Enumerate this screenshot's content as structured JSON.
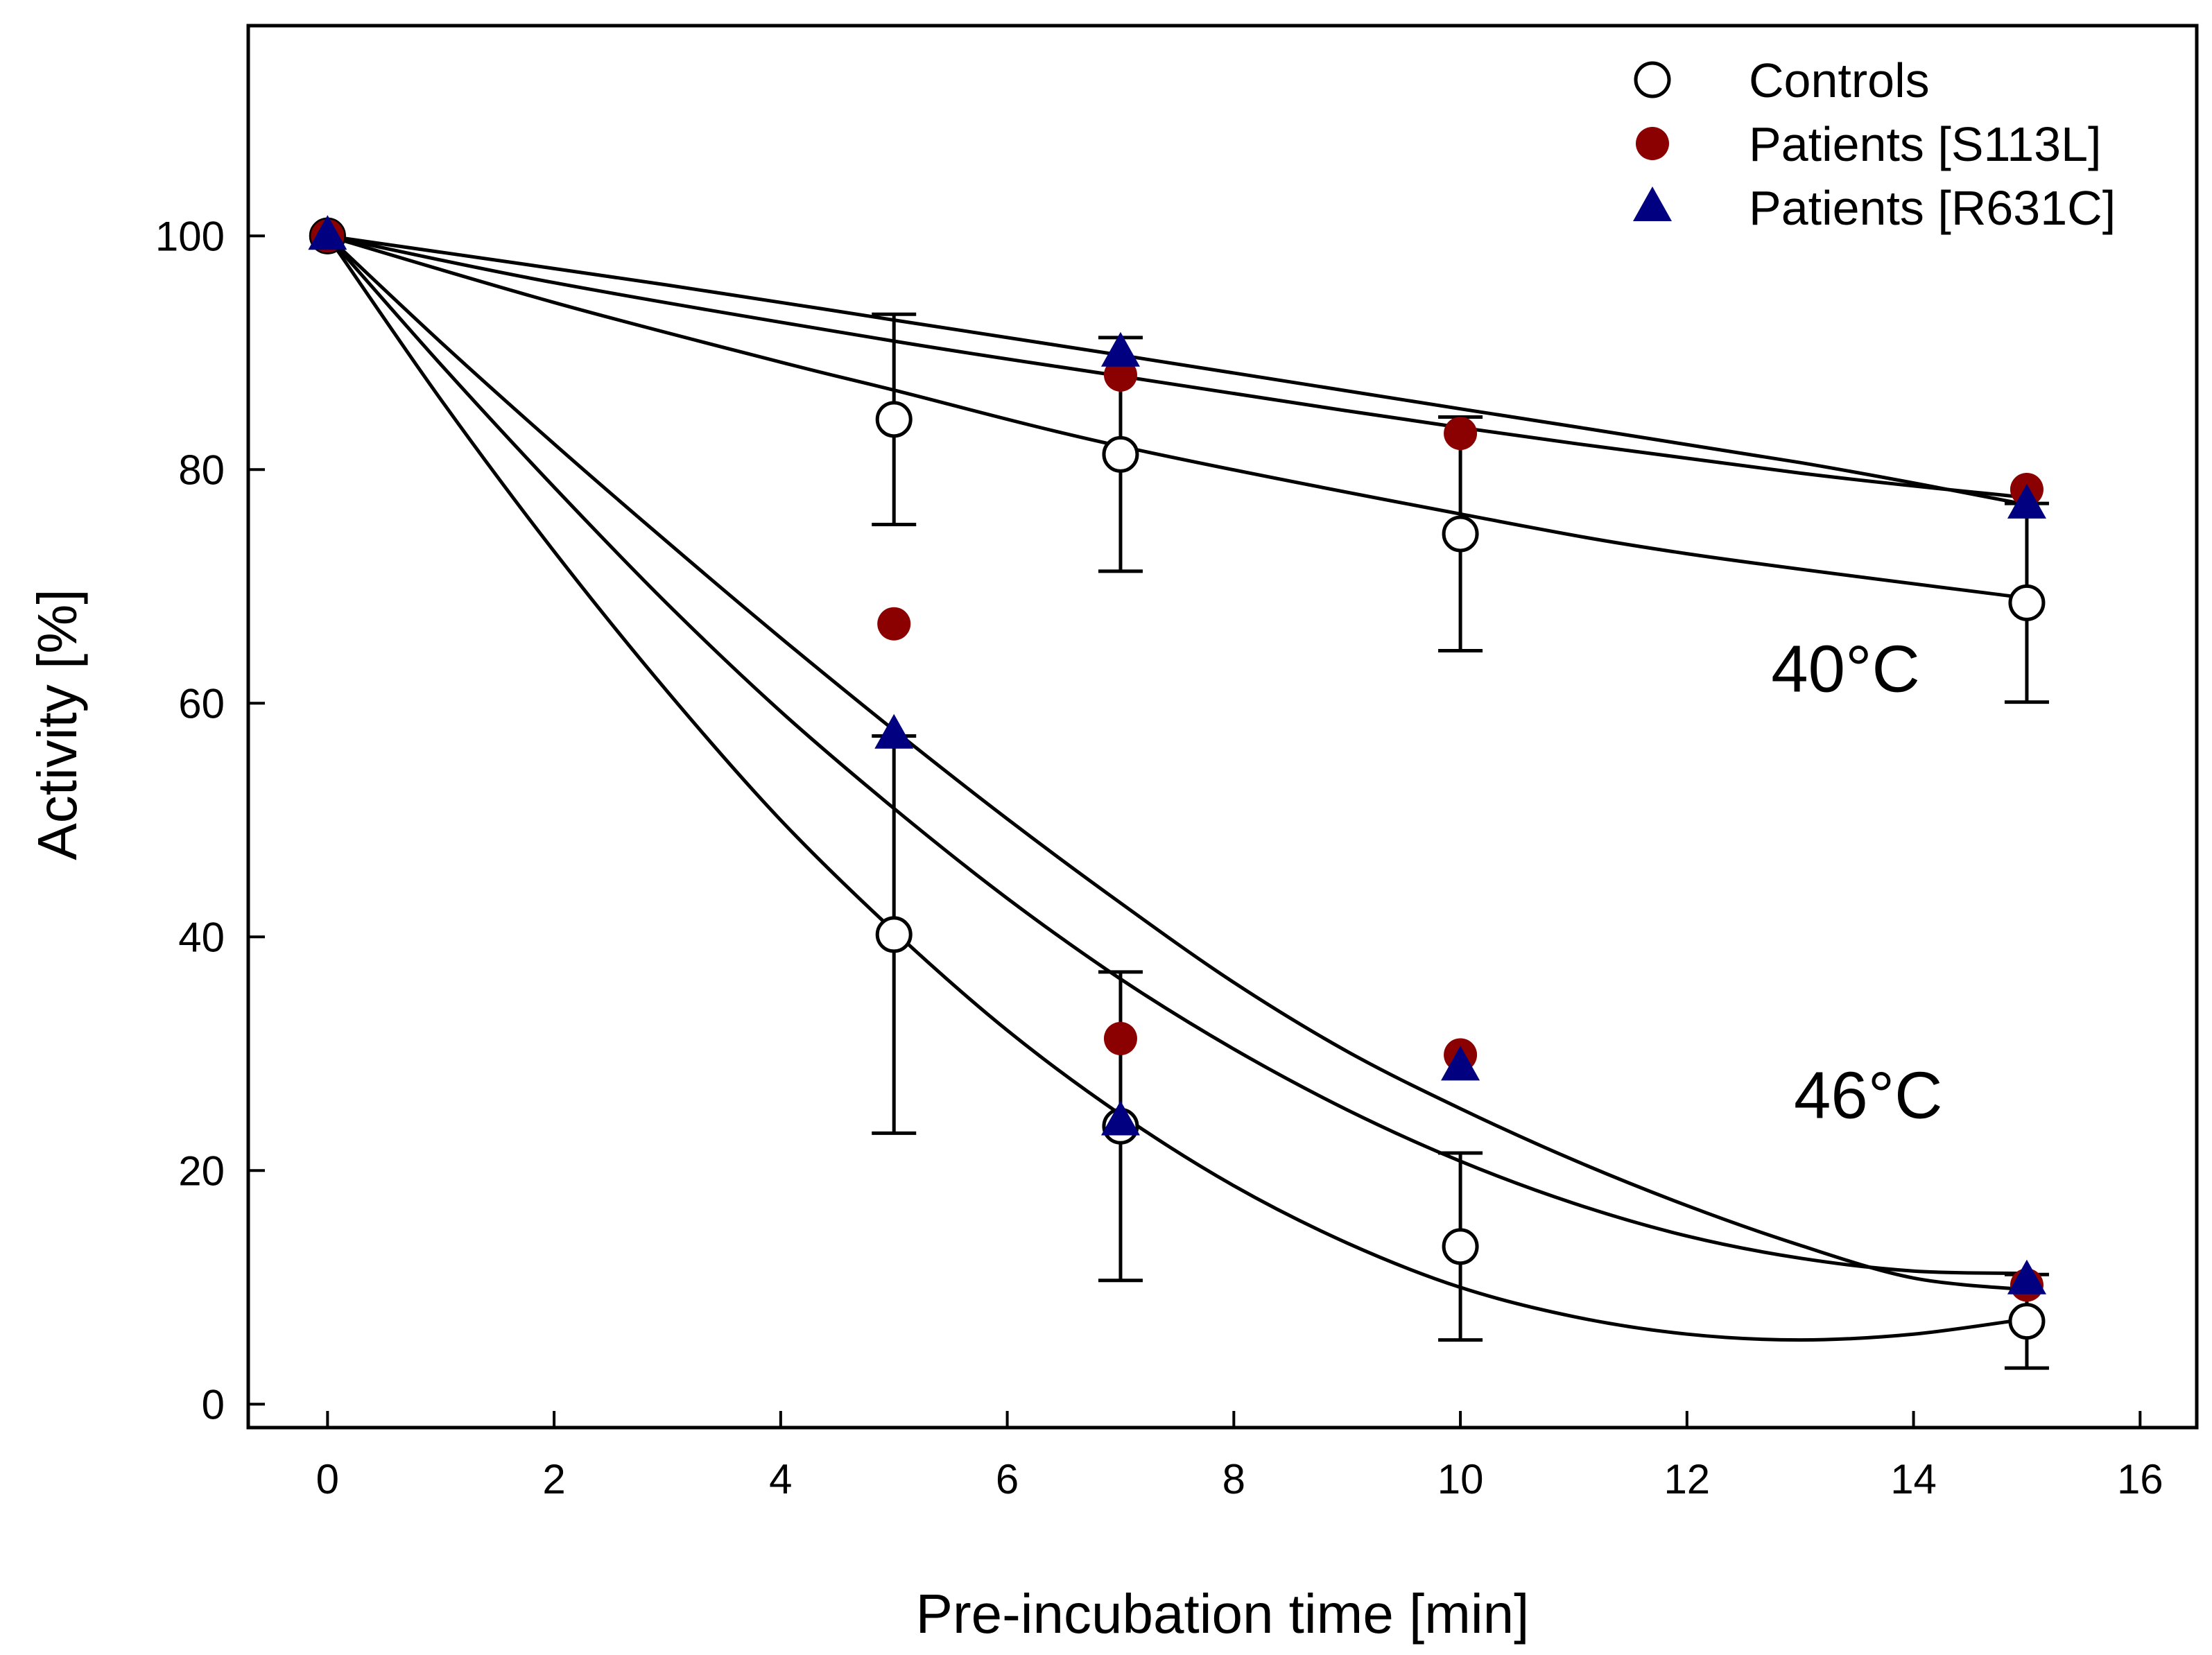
{
  "chart_data": {
    "type": "scatter",
    "title": "",
    "xlabel": "Pre-incubation time [min]",
    "ylabel": "Activity [%]",
    "xlim": [
      -0.7,
      16.5
    ],
    "ylim": [
      -2,
      118
    ],
    "xticks": [
      0,
      2,
      4,
      6,
      8,
      10,
      12,
      14,
      16
    ],
    "yticks": [
      0,
      20,
      40,
      60,
      80,
      100
    ],
    "grid": false,
    "legend_position": "top-right",
    "colors": {
      "controls": "#000000",
      "s113l": "#8b0000",
      "r631c": "#000080",
      "curve": "#000000"
    },
    "series": [
      {
        "name": "Controls",
        "marker": "open-circle",
        "condition": "40°C",
        "x": [
          0,
          5,
          7,
          10,
          15
        ],
        "y": [
          100,
          84.3,
          81.3,
          74.5,
          68.6
        ],
        "error": [
          null,
          9,
          10,
          10,
          8.5
        ]
      },
      {
        "name": "Controls",
        "marker": "open-circle",
        "condition": "46°C",
        "x": [
          0,
          5,
          7,
          10,
          15
        ],
        "y": [
          100,
          40.2,
          23.8,
          13.5,
          7.1
        ],
        "error": [
          null,
          17,
          13.2,
          8,
          4
        ]
      },
      {
        "name": "Patients [S113L]",
        "marker": "filled-circle",
        "condition": "40°C",
        "x": [
          0,
          7,
          10,
          15
        ],
        "y": [
          100,
          88.1,
          83.1,
          78.3
        ]
      },
      {
        "name": "Patients [S113L]",
        "marker": "filled-circle",
        "condition": "46°C",
        "x": [
          5,
          7,
          10,
          15
        ],
        "y": [
          66.8,
          31.3,
          29.9,
          10.2
        ]
      },
      {
        "name": "Patients [R631C]",
        "marker": "filled-triangle",
        "condition": "40°C",
        "x": [
          0,
          7,
          15
        ],
        "y": [
          100,
          90,
          77
        ]
      },
      {
        "name": "Patients [R631C]",
        "marker": "filled-triangle",
        "condition": "46°C",
        "x": [
          5,
          7,
          10,
          15
        ],
        "y": [
          57.3,
          24.2,
          28.9,
          10.6
        ]
      }
    ],
    "curves": [
      {
        "name": "fit-40-controls",
        "points": [
          [
            0,
            100
          ],
          [
            2,
            94.3
          ],
          [
            4,
            89.2
          ],
          [
            5,
            86.8
          ],
          [
            7,
            82.0
          ],
          [
            10,
            76.2
          ],
          [
            12,
            72.8
          ],
          [
            15,
            69.0
          ]
        ]
      },
      {
        "name": "fit-40-r631c",
        "points": [
          [
            0,
            100
          ],
          [
            3,
            95.8
          ],
          [
            5,
            92.8
          ],
          [
            7,
            89.8
          ],
          [
            10,
            85.2
          ],
          [
            13,
            80.6
          ],
          [
            15,
            77.0
          ]
        ]
      },
      {
        "name": "fit-40-s113l",
        "points": [
          [
            0,
            100
          ],
          [
            2,
            96.0
          ],
          [
            5,
            91.0
          ],
          [
            7,
            88.0
          ],
          [
            10,
            83.6
          ],
          [
            13,
            79.7
          ],
          [
            15,
            77.6
          ]
        ]
      },
      {
        "name": "fit-46-controls",
        "points": [
          [
            0,
            100
          ],
          [
            1,
            86.0
          ],
          [
            2,
            73.0
          ],
          [
            3,
            61.0
          ],
          [
            4,
            50.0
          ],
          [
            5,
            40.5
          ],
          [
            6,
            32.0
          ],
          [
            7,
            24.8
          ],
          [
            8,
            18.7
          ],
          [
            9,
            13.8
          ],
          [
            10,
            10.0
          ],
          [
            11,
            7.5
          ],
          [
            12,
            6.0
          ],
          [
            13,
            5.5
          ],
          [
            14,
            6.0
          ],
          [
            15,
            7.3
          ]
        ]
      },
      {
        "name": "fit-46-s113l",
        "points": [
          [
            0,
            100
          ],
          [
            1,
            89.0
          ],
          [
            2,
            78.5
          ],
          [
            3,
            68.5
          ],
          [
            4,
            59.3
          ],
          [
            5,
            51.0
          ],
          [
            6,
            43.3
          ],
          [
            7,
            36.4
          ],
          [
            8,
            30.4
          ],
          [
            9,
            25.2
          ],
          [
            10,
            20.8
          ],
          [
            11,
            17.2
          ],
          [
            12,
            14.4
          ],
          [
            13,
            12.5
          ],
          [
            14,
            11.4
          ],
          [
            15,
            11.2
          ]
        ]
      },
      {
        "name": "fit-46-r631c",
        "points": [
          [
            0,
            100
          ],
          [
            1,
            90.9
          ],
          [
            2,
            82.2
          ],
          [
            3,
            73.8
          ],
          [
            4,
            65.6
          ],
          [
            5,
            57.7
          ],
          [
            6,
            50.1
          ],
          [
            7,
            42.9
          ],
          [
            8,
            36.1
          ],
          [
            9,
            30.2
          ],
          [
            10,
            25.3
          ],
          [
            11,
            20.9
          ],
          [
            12,
            17.0
          ],
          [
            13,
            13.6
          ],
          [
            14,
            10.8
          ],
          [
            15,
            9.8
          ]
        ]
      }
    ],
    "legend": [
      {
        "label": "Controls",
        "marker": "open-circle"
      },
      {
        "label": "Patients [S113L]",
        "marker": "filled-circle"
      },
      {
        "label": "Patients [R631C]",
        "marker": "filled-triangle"
      }
    ],
    "annotations": [
      {
        "text": "40°C",
        "x": 13.4,
        "y": 61
      },
      {
        "text": "46°C",
        "x": 13.6,
        "y": 24.5
      }
    ]
  }
}
